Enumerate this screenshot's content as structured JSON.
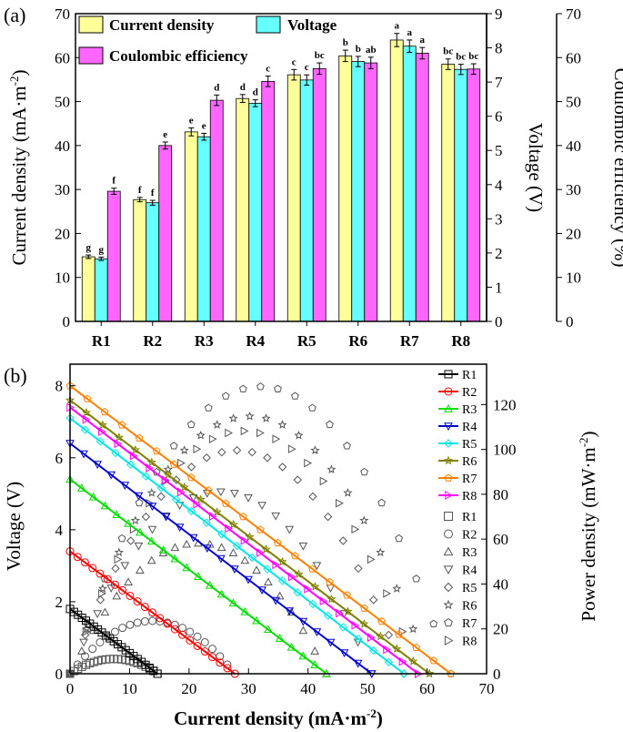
{
  "chart_data": [
    {
      "type": "bar",
      "panel_label": "(a)",
      "categories": [
        "R1",
        "R2",
        "R3",
        "R4",
        "R5",
        "R6",
        "R7",
        "R8"
      ],
      "series": [
        {
          "name": "Current density",
          "axis": "left",
          "color": "#ffff99",
          "values": [
            14.7,
            27.7,
            43.1,
            50.7,
            56.1,
            60.4,
            64.0,
            58.5
          ],
          "errors": [
            0.4,
            0.5,
            0.9,
            0.9,
            1.2,
            1.3,
            1.5,
            1.2
          ],
          "letters": [
            "g",
            "f",
            "e",
            "d",
            "c",
            "b",
            "a",
            "bc"
          ]
        },
        {
          "name": "Voltage",
          "axis": "middle",
          "color": "#66ffff",
          "values": [
            1.83,
            3.47,
            5.4,
            6.38,
            7.06,
            7.6,
            8.05,
            7.37
          ],
          "errors": [
            0.05,
            0.07,
            0.1,
            0.1,
            0.15,
            0.15,
            0.18,
            0.15
          ],
          "letters": [
            "g",
            "f",
            "e",
            "d",
            "c",
            "b",
            "a",
            "bc"
          ]
        },
        {
          "name": "Coulombic efficiency",
          "axis": "right",
          "color": "#ff66ff",
          "values": [
            29.6,
            40.0,
            50.3,
            54.6,
            57.5,
            58.8,
            61.0,
            57.4
          ],
          "errors": [
            0.7,
            0.8,
            1.2,
            1.2,
            1.3,
            1.3,
            1.3,
            1.2
          ],
          "letters": [
            "f",
            "e",
            "d",
            "c",
            "bc",
            "ab",
            "a",
            "bc"
          ]
        }
      ],
      "axes": {
        "left": {
          "label": "Current density (mA·m",
          "label_sup": "-2",
          "label_end": ")",
          "range": [
            0,
            70
          ],
          "ticks": [
            "0",
            "10",
            "20",
            "30",
            "40",
            "50",
            "60",
            "70"
          ]
        },
        "middle": {
          "label": "Voltage (V)",
          "range": [
            0,
            9
          ],
          "ticks": [
            "0",
            "1",
            "2",
            "3",
            "4",
            "5",
            "6",
            "7",
            "8",
            "9"
          ]
        },
        "right": {
          "label": "Coulombic efficiency (%)",
          "range": [
            0,
            70
          ],
          "ticks": [
            "0",
            "10",
            "20",
            "30",
            "40",
            "50",
            "60",
            "70"
          ]
        }
      }
    },
    {
      "type": "line",
      "panel_label": "(b)",
      "xlabel": "Current density (mA·m",
      "xlabel_sup": "-2",
      "xlabel_end": ")",
      "ylabel": "Voltage (V)",
      "y2label": "Power density (mW·m",
      "y2label_sup": "-2",
      "y2label_end": ")",
      "xlim": [
        0,
        70
      ],
      "ylim": [
        0,
        8.6
      ],
      "y2lim": [
        0,
        138
      ],
      "x_ticks": [
        "0",
        "10",
        "20",
        "30",
        "40",
        "50",
        "60",
        "70"
      ],
      "y_ticks": [
        "0",
        "2",
        "4",
        "6",
        "8"
      ],
      "y2_ticks": [
        "0",
        "20",
        "40",
        "60",
        "80",
        "100",
        "120"
      ],
      "series": [
        {
          "name": "R1",
          "color": "#000000",
          "v0": 1.8,
          "xmax": 14.7
        },
        {
          "name": "R2",
          "color": "#ff0000",
          "v0": 3.4,
          "xmax": 27.7
        },
        {
          "name": "R3",
          "color": "#00dd00",
          "v0": 5.4,
          "xmax": 43.1
        },
        {
          "name": "R4",
          "color": "#0000cc",
          "v0": 6.4,
          "xmax": 50.7
        },
        {
          "name": "R5",
          "color": "#00e5e5",
          "v0": 7.1,
          "xmax": 56.1
        },
        {
          "name": "R6",
          "color": "#808000",
          "v0": 7.6,
          "xmax": 60.4
        },
        {
          "name": "R7",
          "color": "#ff8000",
          "v0": 8.0,
          "xmax": 64.0
        },
        {
          "name": "R8",
          "color": "#ff00ff",
          "v0": 7.4,
          "xmax": 58.5
        }
      ],
      "power_legend": [
        "R1",
        "R2",
        "R3",
        "R4",
        "R5",
        "R6",
        "R7",
        "R8"
      ]
    }
  ]
}
